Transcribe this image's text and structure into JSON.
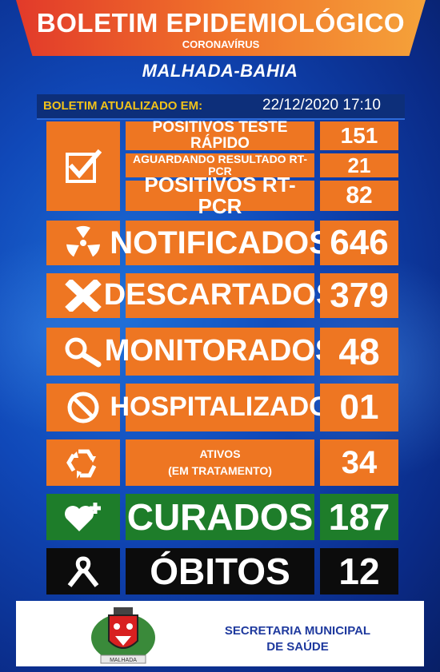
{
  "header": {
    "title": "BOLETIM EPIDEMIOLÓGICO",
    "subtitle": "CORONAVÍRUS"
  },
  "city": "MALHADA-BAHIA",
  "updated": {
    "label": "BOLETIM ATUALIZADO EM:",
    "datetime": "22/12/2020 17:10"
  },
  "stats": {
    "positivos_rapido": {
      "label": "POSITIVOS TESTE RÁPIDO",
      "value": "151"
    },
    "aguardando": {
      "label": "AGUARDANDO RESULTADO RT-PCR",
      "value": "21"
    },
    "positivos_rtpcr": {
      "label": "POSITIVOS RT-PCR",
      "value": "82"
    },
    "notificados": {
      "label": "NOTIFICADOS",
      "value": "646",
      "icon": "radiation-icon"
    },
    "descartados": {
      "label": "DESCARTADOS",
      "value": "379",
      "icon": "x-icon"
    },
    "monitorados": {
      "label": "MONITORADOS",
      "value": "48",
      "icon": "magnifier-icon"
    },
    "hospitalizado": {
      "label": "HOSPITALIZADO",
      "value": "01",
      "icon": "prohibited-icon"
    },
    "ativos": {
      "label1": "ATIVOS",
      "label2": "(EM TRATAMENTO)",
      "value": "34",
      "icon": "recycle-icon"
    },
    "curados": {
      "label": "CURADOS",
      "value": "187",
      "icon": "heart-plus-icon"
    },
    "obitos": {
      "label": "ÓBITOS",
      "value": "12",
      "icon": "ribbon-icon"
    }
  },
  "footer": {
    "line1": "SECRETARIA MUNICIPAL",
    "line2": "DE SAÚDE",
    "crest_text": "MALHADA"
  },
  "colors": {
    "orange": "#ee7622",
    "green": "#1e7d2a",
    "black": "#0c0c0c",
    "blue": "#0b2a8a",
    "yellow": "#f0c21a"
  }
}
